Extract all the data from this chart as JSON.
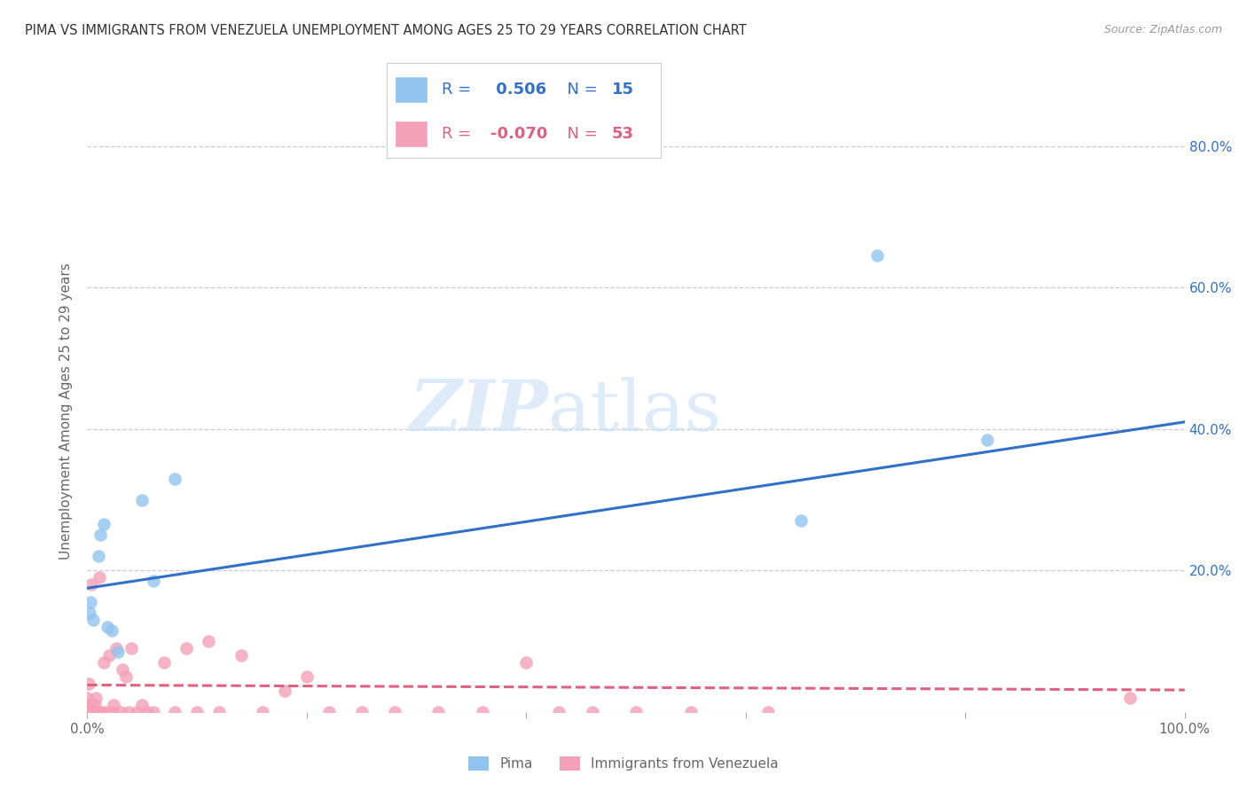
{
  "title": "PIMA VS IMMIGRANTS FROM VENEZUELA UNEMPLOYMENT AMONG AGES 25 TO 29 YEARS CORRELATION CHART",
  "source": "Source: ZipAtlas.com",
  "ylabel": "Unemployment Among Ages 25 to 29 years",
  "xlim": [
    0.0,
    1.0
  ],
  "ylim": [
    0.0,
    0.85
  ],
  "x_ticks": [
    0.0,
    0.2,
    0.4,
    0.6,
    0.8,
    1.0
  ],
  "x_tick_labels": [
    "0.0%",
    "",
    "",
    "",
    "",
    "100.0%"
  ],
  "y_ticks": [
    0.0,
    0.2,
    0.4,
    0.6,
    0.8
  ],
  "y_tick_labels_left": [
    "",
    "",
    "",
    "",
    ""
  ],
  "y_tick_labels_right": [
    "",
    "20.0%",
    "40.0%",
    "60.0%",
    "80.0%"
  ],
  "watermark_zip": "ZIP",
  "watermark_atlas": "atlas",
  "legend_label1": "Pima",
  "legend_label2": "Immigrants from Venezuela",
  "R1": 0.506,
  "N1": 15,
  "R2": -0.07,
  "N2": 53,
  "pima_color": "#90C4EE",
  "venez_color": "#F4A0B8",
  "line1_color": "#3070C8",
  "line2_color": "#E06080",
  "pima_points_x": [
    0.002,
    0.005,
    0.01,
    0.012,
    0.015,
    0.018,
    0.022,
    0.028,
    0.05,
    0.06,
    0.08,
    0.65,
    0.72,
    0.82,
    0.003
  ],
  "pima_points_y": [
    0.14,
    0.13,
    0.22,
    0.25,
    0.265,
    0.12,
    0.115,
    0.085,
    0.3,
    0.185,
    0.33,
    0.27,
    0.645,
    0.385,
    0.155
  ],
  "venez_points_x": [
    0.0,
    0.0,
    0.0,
    0.001,
    0.001,
    0.001,
    0.003,
    0.003,
    0.004,
    0.004,
    0.006,
    0.007,
    0.008,
    0.01,
    0.011,
    0.013,
    0.015,
    0.017,
    0.02,
    0.022,
    0.024,
    0.026,
    0.03,
    0.032,
    0.035,
    0.038,
    0.04,
    0.045,
    0.05,
    0.055,
    0.06,
    0.07,
    0.08,
    0.09,
    0.1,
    0.11,
    0.12,
    0.14,
    0.16,
    0.18,
    0.2,
    0.22,
    0.25,
    0.28,
    0.32,
    0.36,
    0.4,
    0.43,
    0.46,
    0.5,
    0.55,
    0.62,
    0.95
  ],
  "venez_points_y": [
    0.0,
    0.01,
    0.02,
    0.0,
    0.01,
    0.04,
    0.0,
    0.01,
    0.0,
    0.18,
    0.0,
    0.01,
    0.02,
    0.0,
    0.19,
    0.0,
    0.07,
    0.0,
    0.08,
    0.0,
    0.01,
    0.09,
    0.0,
    0.06,
    0.05,
    0.0,
    0.09,
    0.0,
    0.01,
    0.0,
    0.0,
    0.07,
    0.0,
    0.09,
    0.0,
    0.1,
    0.0,
    0.08,
    0.0,
    0.03,
    0.05,
    0.0,
    0.0,
    0.0,
    0.0,
    0.0,
    0.07,
    0.0,
    0.0,
    0.0,
    0.0,
    0.0,
    0.02
  ],
  "line1_x_start": 0.0,
  "line1_x_end": 1.0,
  "line1_y_start": 0.175,
  "line1_y_end": 0.41,
  "line2_x_start": 0.0,
  "line2_x_end": 1.0,
  "line2_y_start": 0.038,
  "line2_y_end": 0.031,
  "grid_color": "#CCCCCC",
  "bg_color": "#FFFFFF",
  "title_color": "#333333",
  "source_color": "#999999",
  "ylabel_color": "#666666",
  "right_tick_color": "#3070C8",
  "bottom_tick_color": "#666666"
}
